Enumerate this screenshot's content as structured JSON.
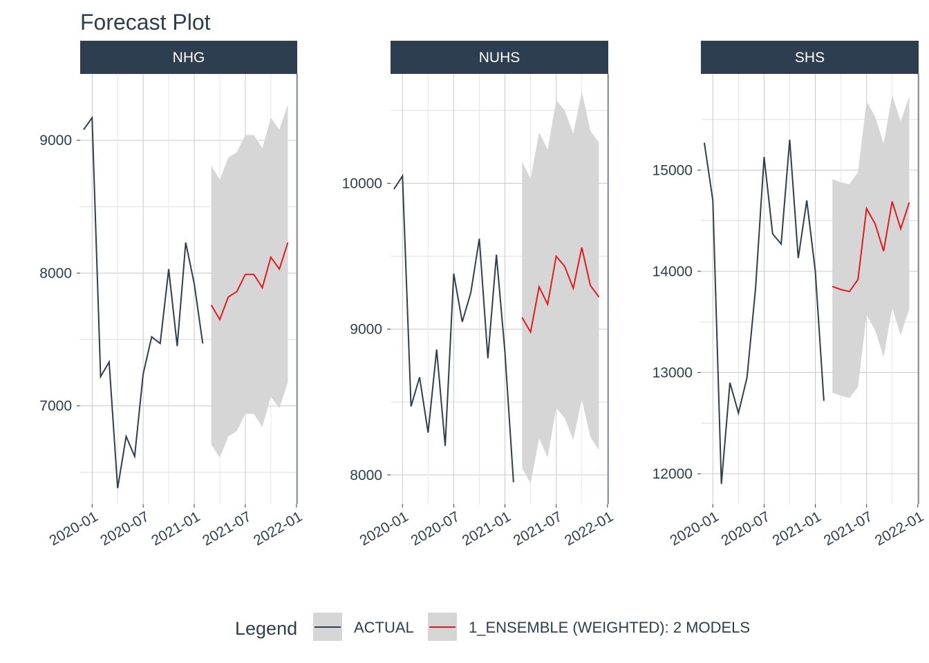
{
  "title": "Forecast Plot",
  "chart_data": {
    "type": "line",
    "title": "Forecast Plot",
    "facets": [
      "NHG",
      "NUHS",
      "SHS"
    ],
    "x_ticks": [
      "2020-01",
      "2020-07",
      "2021-01",
      "2021-07",
      "2022-01"
    ],
    "grid": true,
    "legend": {
      "title": "Legend",
      "placement": "bottom",
      "entries": [
        {
          "name": "ACTUAL",
          "color": "#2c3e50"
        },
        {
          "name": "1_ENSEMBLE (WEIGHTED): 2 MODELS",
          "color": "#e31a1c"
        }
      ]
    },
    "panels": [
      {
        "name": "NHG",
        "ylim": [
          6260,
          9500
        ],
        "y_ticks": [
          7000,
          8000,
          9000
        ],
        "actual": {
          "x": [
            "2019-12",
            "2020-01",
            "2020-02",
            "2020-03",
            "2020-04",
            "2020-05",
            "2020-06",
            "2020-07",
            "2020-08",
            "2020-09",
            "2020-10",
            "2020-11",
            "2020-12",
            "2021-01",
            "2021-02"
          ],
          "y": [
            9080,
            9170,
            7220,
            7330,
            6380,
            6770,
            6620,
            7240,
            7520,
            7470,
            8030,
            7450,
            8230,
            7920,
            7470
          ]
        },
        "forecast": {
          "x": [
            "2021-03",
            "2021-04",
            "2021-05",
            "2021-06",
            "2021-07",
            "2021-08",
            "2021-09",
            "2021-10",
            "2021-11",
            "2021-12"
          ],
          "y": [
            7760,
            7650,
            7820,
            7860,
            7990,
            7990,
            7890,
            8120,
            8030,
            8230
          ],
          "lower": [
            6710,
            6610,
            6770,
            6810,
            6940,
            6940,
            6840,
            7070,
            6980,
            7180
          ],
          "upper": [
            8810,
            8700,
            8870,
            8910,
            9040,
            9040,
            8940,
            9170,
            9080,
            9270
          ]
        }
      },
      {
        "name": "NUHS",
        "ylim": [
          7800,
          10750
        ],
        "y_ticks": [
          8000,
          9000,
          10000
        ],
        "actual": {
          "x": [
            "2019-12",
            "2020-01",
            "2020-02",
            "2020-03",
            "2020-04",
            "2020-05",
            "2020-06",
            "2020-07",
            "2020-08",
            "2020-09",
            "2020-10",
            "2020-11",
            "2020-12",
            "2021-01",
            "2021-02"
          ],
          "y": [
            9960,
            10050,
            8470,
            8670,
            8290,
            8860,
            8200,
            9380,
            9050,
            9250,
            9620,
            8800,
            9510,
            8840,
            7950
          ]
        },
        "forecast": {
          "x": [
            "2021-03",
            "2021-04",
            "2021-05",
            "2021-06",
            "2021-07",
            "2021-08",
            "2021-09",
            "2021-10",
            "2021-11",
            "2021-12"
          ],
          "y": [
            9080,
            8980,
            9290,
            9170,
            9500,
            9430,
            9280,
            9560,
            9300,
            9220
          ],
          "lower": [
            8050,
            7940,
            8250,
            8120,
            8460,
            8390,
            8240,
            8520,
            8260,
            8170
          ],
          "upper": [
            10150,
            10030,
            10350,
            10230,
            10570,
            10500,
            10340,
            10630,
            10360,
            10280
          ]
        }
      },
      {
        "name": "SHS",
        "ylim": [
          11700,
          15950
        ],
        "y_ticks": [
          12000,
          13000,
          14000,
          15000
        ],
        "actual": {
          "x": [
            "2019-12",
            "2020-01",
            "2020-02",
            "2020-03",
            "2020-04",
            "2020-05",
            "2020-06",
            "2020-07",
            "2020-08",
            "2020-09",
            "2020-10",
            "2020-11",
            "2020-12",
            "2021-01",
            "2021-02"
          ],
          "y": [
            15270,
            14700,
            11900,
            12900,
            12600,
            12950,
            13830,
            15130,
            14370,
            14270,
            15300,
            14130,
            14700,
            14000,
            12720
          ]
        },
        "forecast": {
          "x": [
            "2021-03",
            "2021-04",
            "2021-05",
            "2021-06",
            "2021-07",
            "2021-08",
            "2021-09",
            "2021-10",
            "2021-11",
            "2021-12"
          ],
          "y": [
            13850,
            13820,
            13800,
            13920,
            14620,
            14470,
            14200,
            14690,
            14420,
            14680
          ],
          "lower": [
            12800,
            12770,
            12750,
            12860,
            13570,
            13420,
            13150,
            13640,
            13370,
            13630
          ],
          "upper": [
            14910,
            14880,
            14860,
            14980,
            15680,
            15530,
            15260,
            15740,
            15480,
            15730
          ]
        }
      }
    ]
  }
}
